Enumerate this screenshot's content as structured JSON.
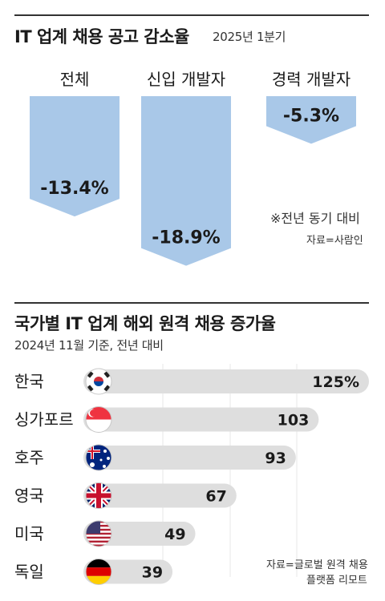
{
  "top": {
    "title": "IT 업계 채용 공고 감소율",
    "subtitle": "2025년 1분기",
    "note": "※전년 동기 대비",
    "source": "자료=사람인",
    "chart_data": {
      "type": "bar",
      "categories": [
        "전체",
        "신입 개발자",
        "경력 개발자"
      ],
      "values": [
        -13.4,
        -18.9,
        -5.3
      ],
      "value_labels": [
        "-13.4%",
        "-18.9%",
        "-5.3%"
      ],
      "unit": "%",
      "bar_color": "#a9c8e8"
    }
  },
  "bottom": {
    "title": "국가별 IT 업계 해외 원격 채용 증가율",
    "subtitle": "2024년 11월 기준, 전년 대비",
    "source_line1": "자료=글로벌 원격 채용",
    "source_line2": "플랫폼 리모트",
    "chart_data": {
      "type": "bar",
      "categories": [
        "한국",
        "싱가포르",
        "호주",
        "영국",
        "미국",
        "독일"
      ],
      "values": [
        125,
        103,
        93,
        67,
        49,
        39
      ],
      "value_labels": [
        "125%",
        "103",
        "93",
        "67",
        "49",
        "39"
      ],
      "flags": [
        "south-korea-flag",
        "singapore-flag",
        "australia-flag",
        "uk-flag",
        "usa-flag",
        "germany-flag"
      ],
      "unit": "%",
      "bar_color": "#dedede"
    }
  }
}
